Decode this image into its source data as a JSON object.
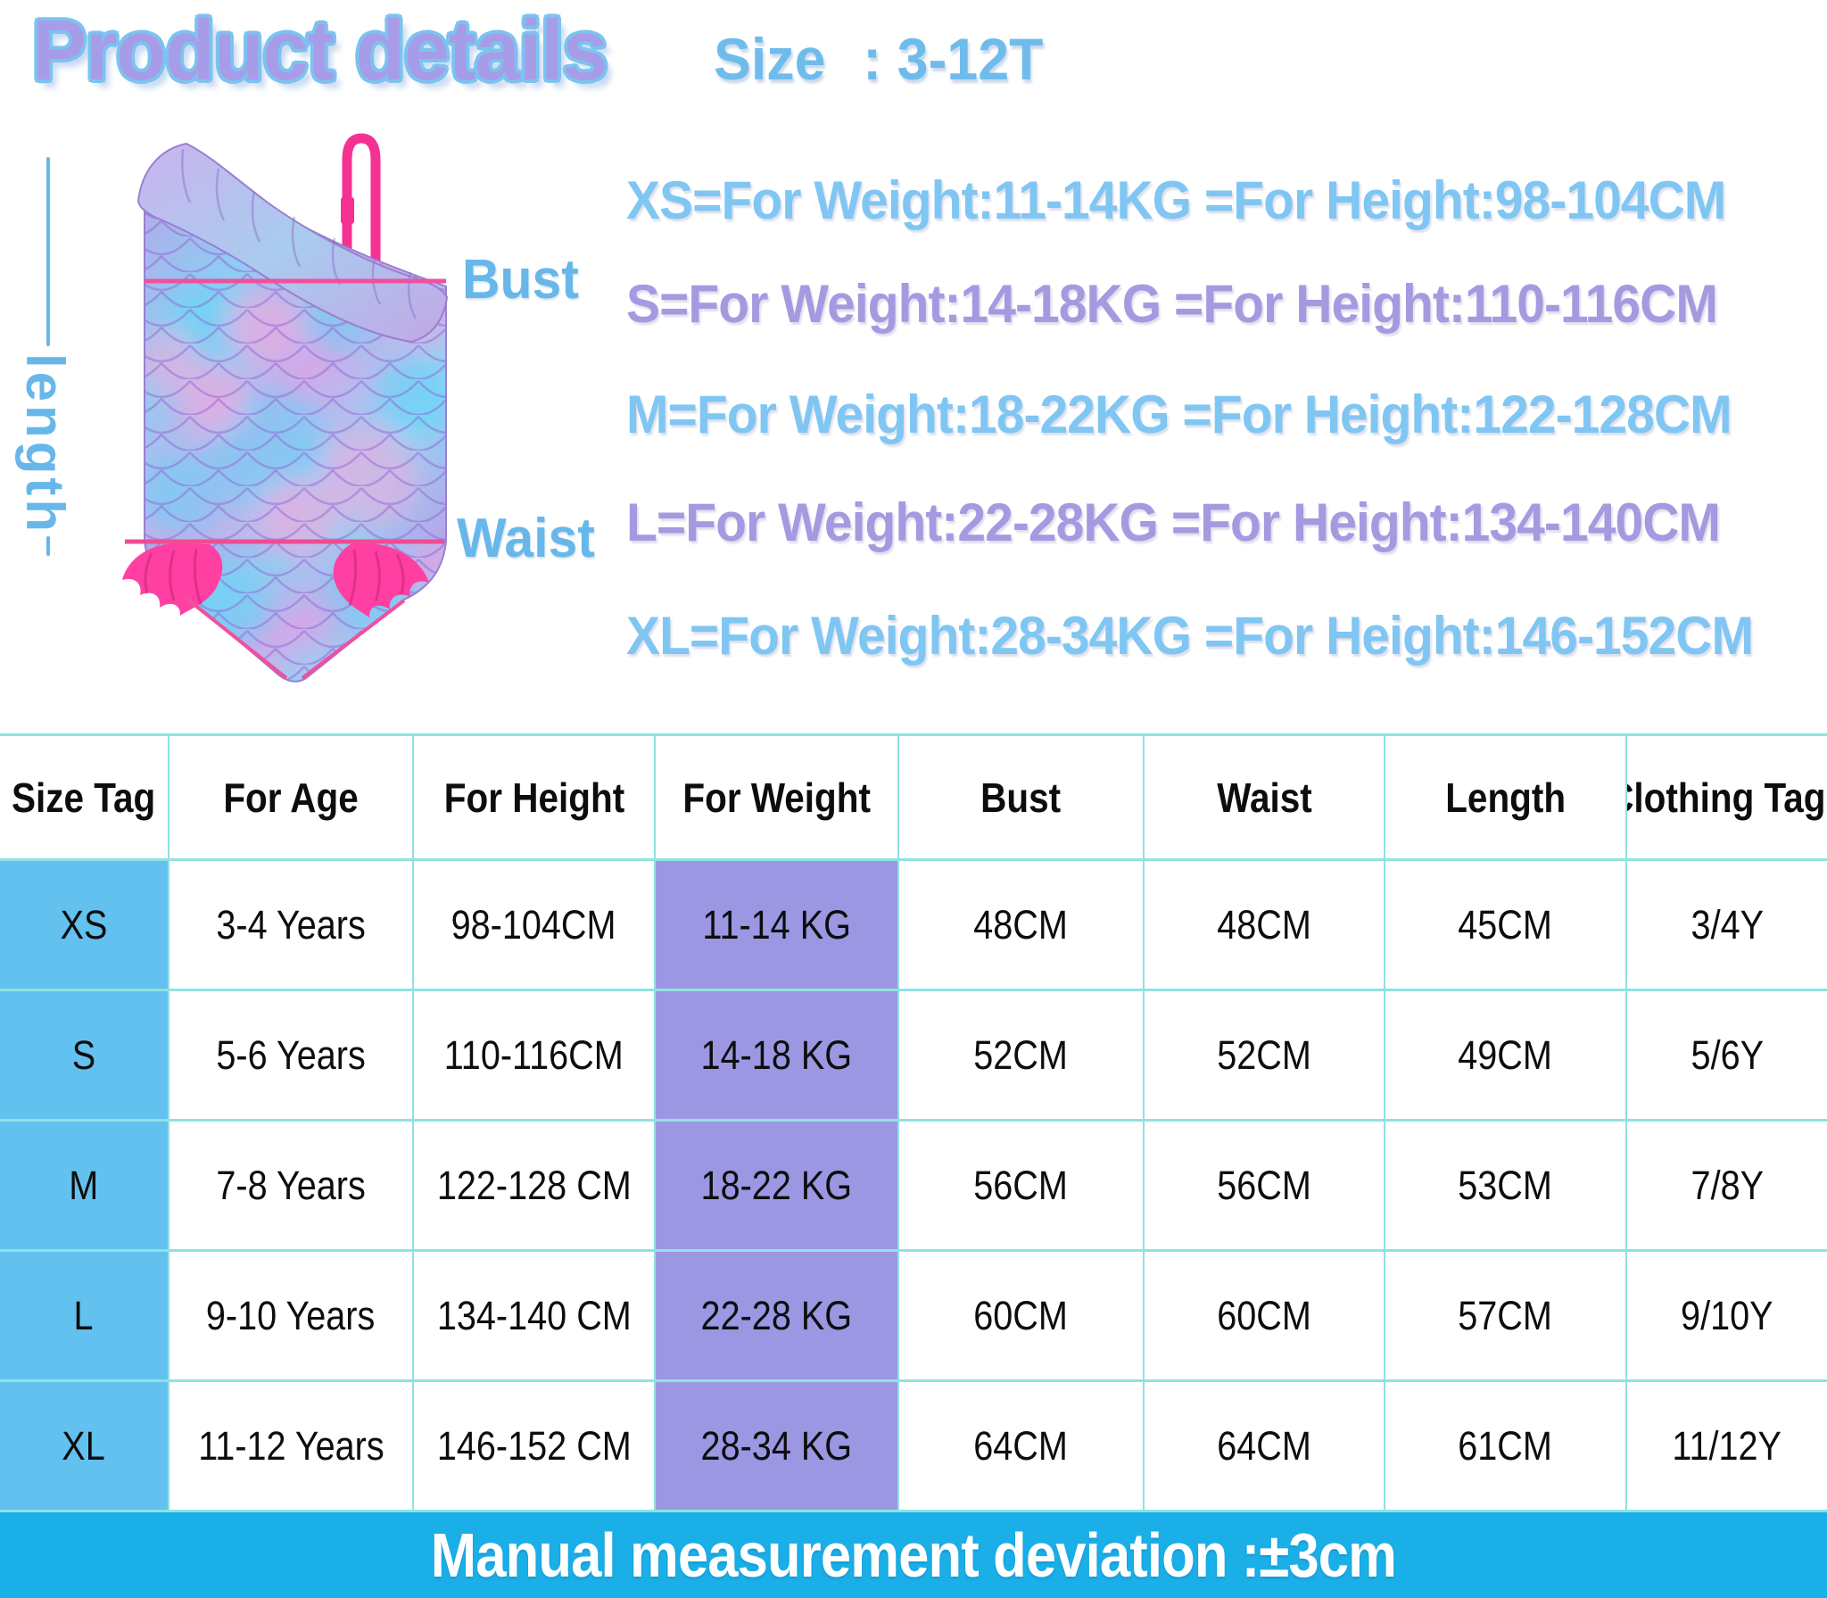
{
  "header": {
    "title": "Product details",
    "size_label": "Size",
    "size_value": ": 3-12T"
  },
  "diagram": {
    "length_label": "length",
    "bust_label": "Bust",
    "waist_label": "Waist",
    "illustration": "one-shoulder mermaid-scale swimsuit"
  },
  "size_guide_lines": [
    {
      "text": "XS=For Weight:11-14KG =For Height:98-104CM",
      "color": "#7fc6f3"
    },
    {
      "text": "S=For Weight:14-18KG =For Height:110-116CM",
      "color": "#a49ae0"
    },
    {
      "text": "M=For Weight:18-22KG =For Height:122-128CM",
      "color": "#7fc6f3"
    },
    {
      "text": "L=For Weight:22-28KG =For Height:134-140CM",
      "color": "#a49ae0"
    },
    {
      "text": "XL=For Weight:28-34KG =For Height:146-152CM",
      "color": "#7fc6f3"
    }
  ],
  "size_table": {
    "headers": [
      "Size Tag",
      "For Age",
      "For Height",
      "For Weight",
      "Bust",
      "Waist",
      "Length",
      "Clothing Tags"
    ],
    "rows": [
      [
        "XS",
        "3-4 Years",
        "98-104CM",
        "11-14 KG",
        "48CM",
        "48CM",
        "45CM",
        "3/4Y"
      ],
      [
        "S",
        "5-6 Years",
        "110-116CM",
        "14-18 KG",
        "52CM",
        "52CM",
        "49CM",
        "5/6Y"
      ],
      [
        "M",
        "7-8 Years",
        "122-128 CM",
        "18-22 KG",
        "56CM",
        "56CM",
        "53CM",
        "7/8Y"
      ],
      [
        "L",
        "9-10 Years",
        "134-140 CM",
        "22-28 KG",
        "60CM",
        "60CM",
        "57CM",
        "9/10Y"
      ],
      [
        "XL",
        "11-12 Years",
        "146-152 CM",
        "28-34 KG",
        "64CM",
        "64CM",
        "61CM",
        "11/12Y"
      ]
    ]
  },
  "footer": {
    "note": "Manual measurement deviation :±3cm"
  },
  "colors": {
    "title_fill": "#a79ce8",
    "title_outline": "#7cc3ef",
    "blue_text": "#7fc6f3",
    "purple_text": "#a49ae0",
    "label_blue": "#67b7ea",
    "table_border": "#8fe2e2",
    "size_column_bg": "#62c1ef",
    "weight_column_bg": "#9b97e3",
    "footer_bg": "#1bafe8",
    "suit_pink": "#f53192"
  }
}
